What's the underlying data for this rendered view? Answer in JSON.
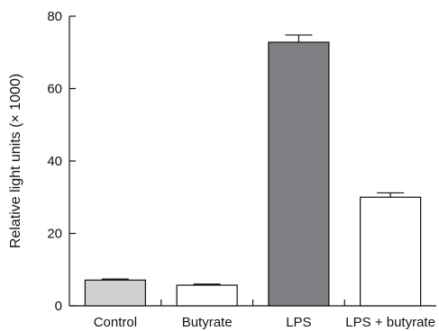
{
  "chart_data": {
    "type": "bar",
    "title": "",
    "xlabel": "",
    "ylabel": "Relative light units (× 1000)",
    "ylim": [
      0,
      80
    ],
    "yticks": [
      0,
      20,
      40,
      60,
      80
    ],
    "categories": [
      "Control",
      "Butyrate",
      "LPS",
      "LPS + butyrate"
    ],
    "values": [
      7.1,
      5.7,
      72.8,
      30.0
    ],
    "errors": [
      0.3,
      0.3,
      2.0,
      1.2
    ],
    "bar_colors": [
      "#d0d0d0",
      "#ffffff",
      "#7f7f84",
      "#ffffff"
    ],
    "grid": false
  }
}
